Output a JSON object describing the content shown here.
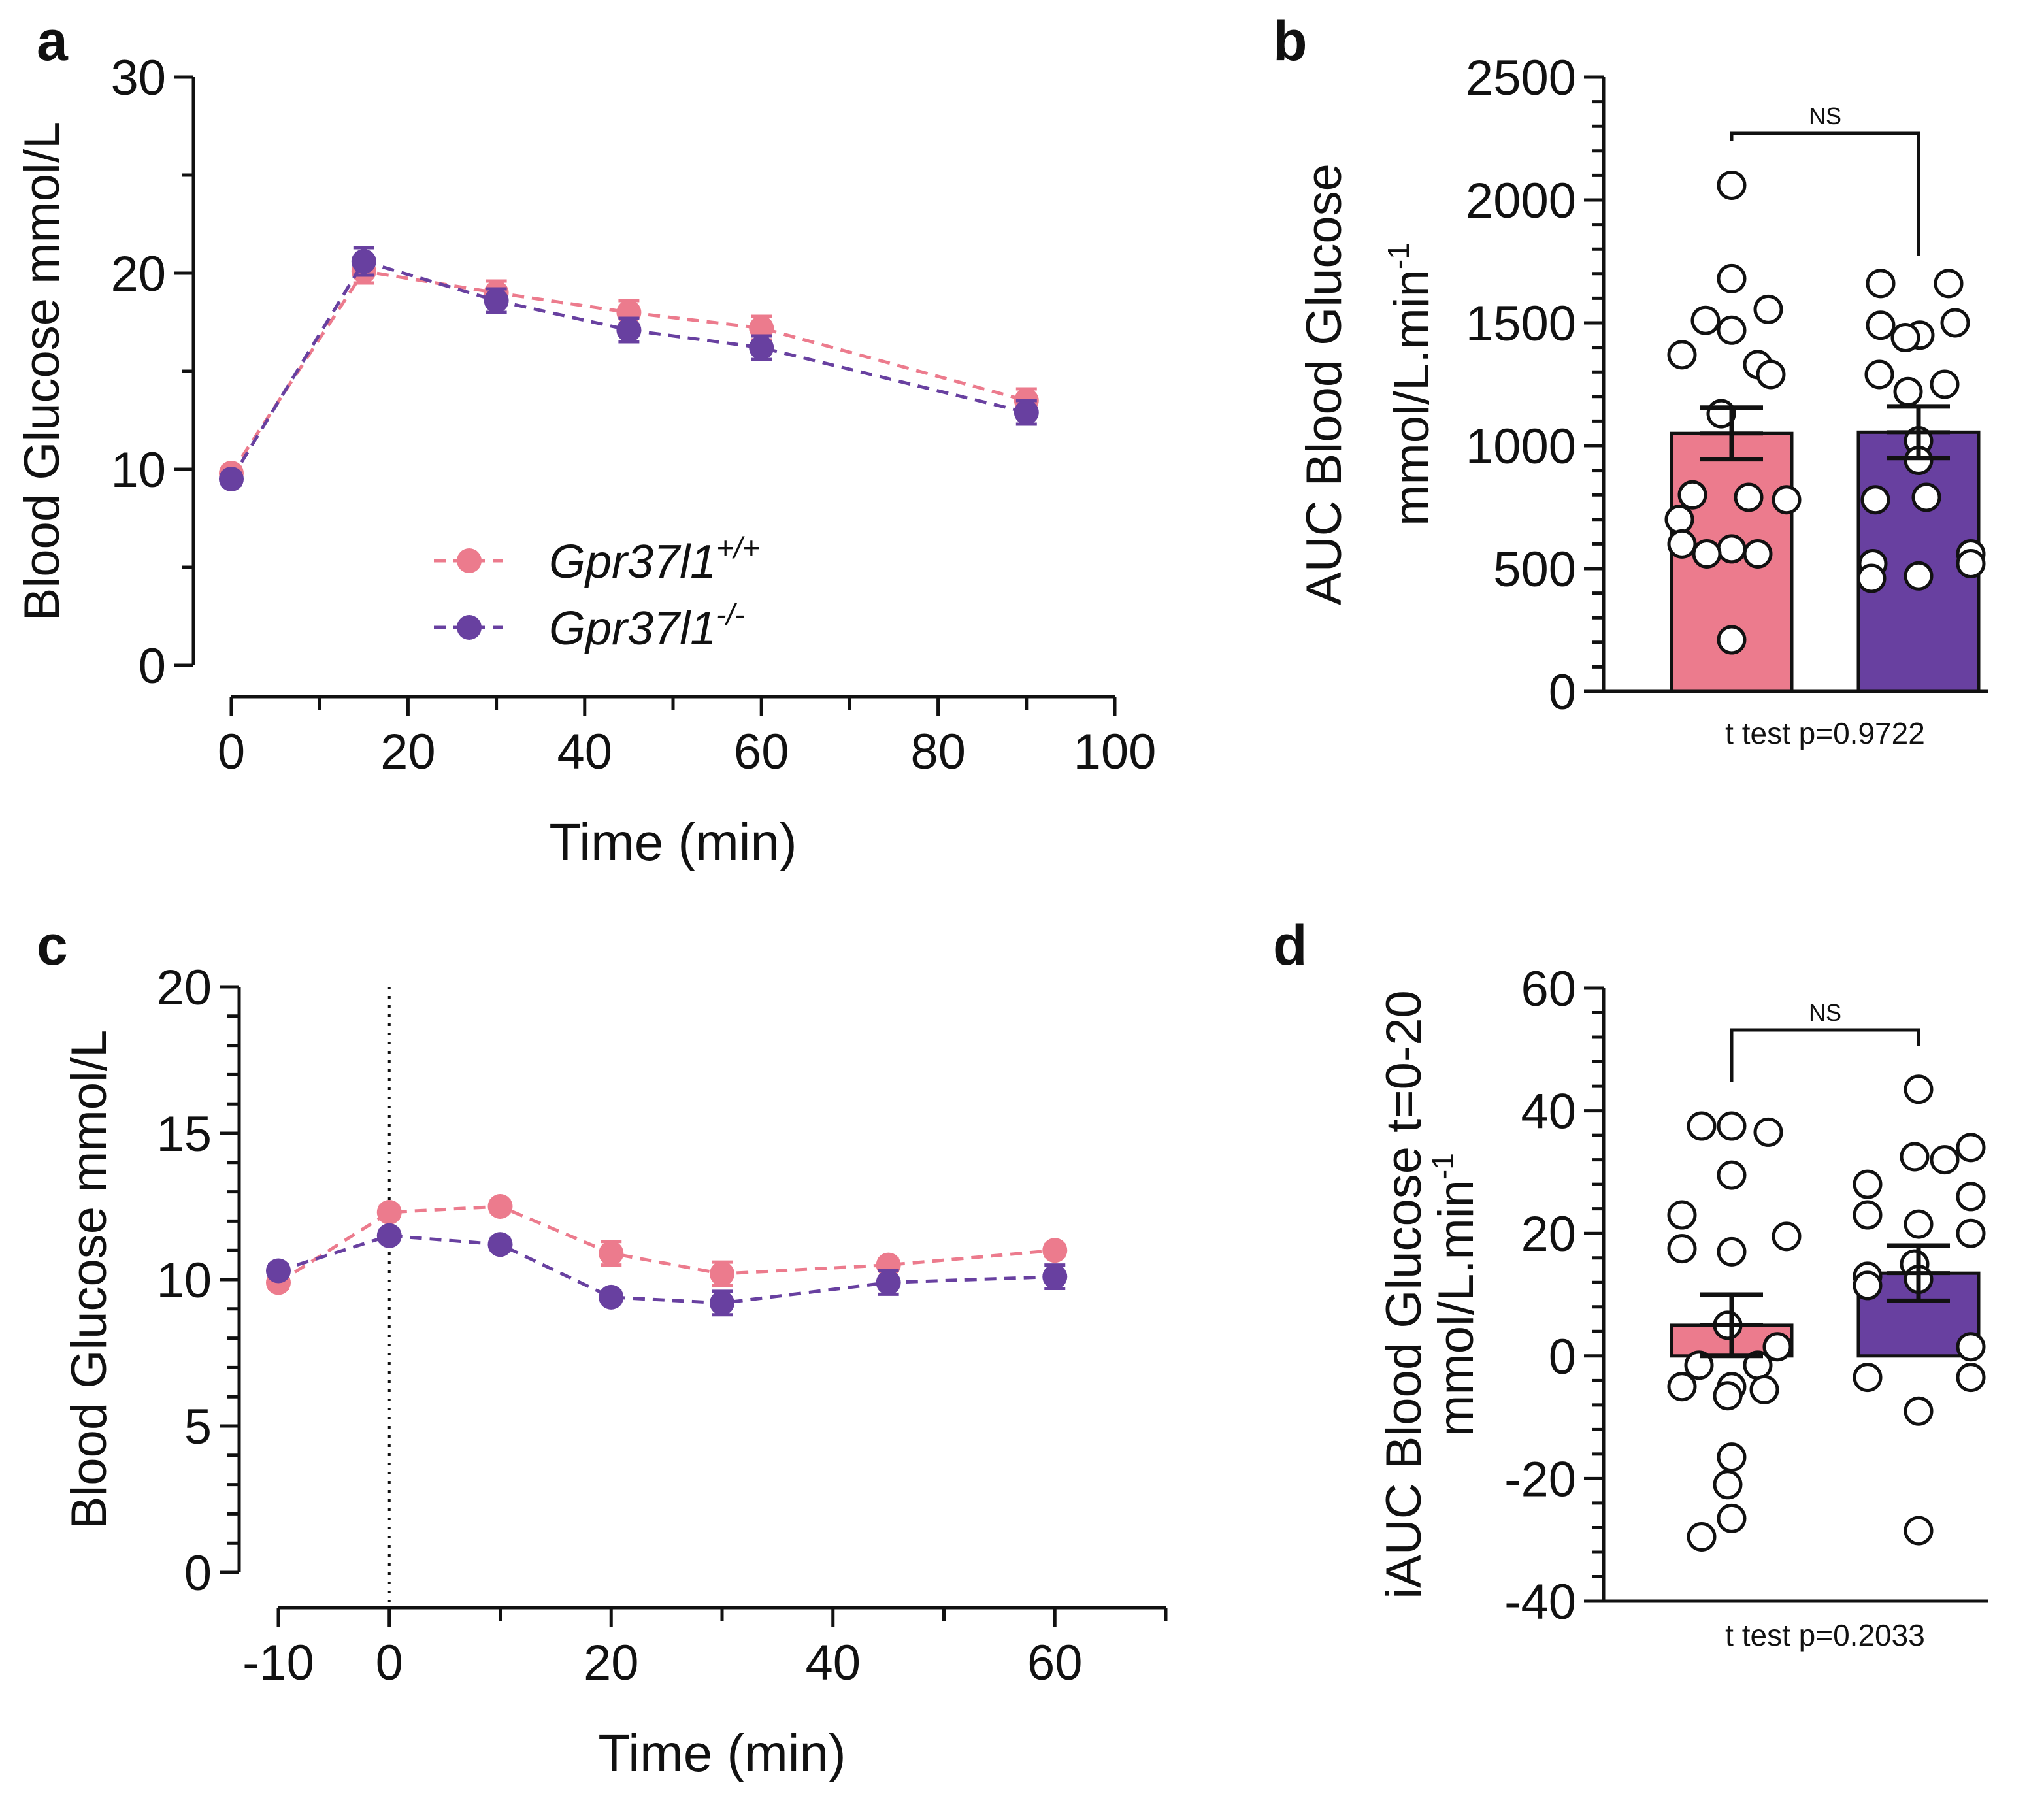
{
  "colors": {
    "wt": "#ec7b8d",
    "ko": "#6840a0",
    "axis": "#111111"
  },
  "legend": {
    "wt": {
      "name": "Gpr37l1",
      "sup": "+/+"
    },
    "ko": {
      "name": "Gpr37l1",
      "sup": "-/-"
    }
  },
  "chart_data": [
    {
      "panel": "a",
      "type": "line",
      "ylabel": "Blood Glucose mmol/L",
      "xlabel": "Time (min)",
      "xlim": [
        0,
        100
      ],
      "ylim": [
        0,
        30
      ],
      "xticks": [
        0,
        20,
        40,
        60,
        80,
        100
      ],
      "xminor": [
        10,
        30,
        50,
        70,
        90
      ],
      "yticks": [
        0,
        10,
        20,
        30
      ],
      "x": [
        0,
        15,
        30,
        45,
        60,
        90
      ],
      "series": [
        {
          "name": "Gpr37l1+/+",
          "key": "wt",
          "values": [
            9.8,
            20.1,
            19.0,
            18.0,
            17.2,
            13.5
          ],
          "err": [
            0.3,
            0.6,
            0.6,
            0.6,
            0.6,
            0.6
          ]
        },
        {
          "name": "Gpr37l1-/-",
          "key": "ko",
          "values": [
            9.5,
            20.6,
            18.6,
            17.1,
            16.2,
            12.9
          ],
          "err": [
            0.3,
            0.7,
            0.6,
            0.6,
            0.6,
            0.6
          ]
        }
      ]
    },
    {
      "panel": "b",
      "type": "bar",
      "ylabel_line1": "AUC Blood Glucose",
      "ylabel_line2": "mmol/L.min",
      "ylabel_sup": "-1",
      "ylim": [
        0,
        2500
      ],
      "yticks": [
        0,
        500,
        1000,
        1500,
        2000,
        2500
      ],
      "categories": [
        "Gpr37l1+/+",
        "Gpr37l1-/-"
      ],
      "values": [
        1050,
        1055
      ],
      "sem": [
        105,
        105
      ],
      "significance": "NS",
      "test": "t test p=0.9722",
      "points": [
        [
          2060,
          1680,
          1555,
          1510,
          1470,
          1370,
          1330,
          1290,
          1130,
          800,
          790,
          780,
          700,
          600,
          580,
          560,
          560,
          210
        ],
        [
          1660,
          1660,
          1500,
          1490,
          1450,
          1440,
          1290,
          1250,
          1220,
          1020,
          940,
          790,
          780,
          560,
          520,
          520,
          470,
          460
        ]
      ]
    },
    {
      "panel": "c",
      "type": "line",
      "ylabel": "Blood Glucose mmol/L",
      "xlabel": "Time (min)",
      "xlim": [
        -10,
        70
      ],
      "ylim": [
        0,
        20
      ],
      "xticks": [
        -10,
        0,
        20,
        40,
        60
      ],
      "xminor": [
        10,
        30,
        50,
        70
      ],
      "yticks": [
        0,
        5,
        10,
        15,
        20
      ],
      "vline": 0,
      "x": [
        -10,
        0,
        10,
        20,
        30,
        45,
        60
      ],
      "series": [
        {
          "name": "Gpr37l1+/+",
          "key": "wt",
          "values": [
            9.9,
            12.3,
            12.5,
            10.9,
            10.2,
            10.5,
            11.0
          ],
          "err": [
            0.2,
            0.2,
            0.2,
            0.4,
            0.4,
            0.2,
            0.2
          ]
        },
        {
          "name": "Gpr37l1-/-",
          "key": "ko",
          "values": [
            10.3,
            11.5,
            11.2,
            9.4,
            9.2,
            9.9,
            10.1
          ],
          "err": [
            0.2,
            0.2,
            0.2,
            0.2,
            0.4,
            0.4,
            0.4
          ]
        }
      ]
    },
    {
      "panel": "d",
      "type": "bar",
      "ylabel_line1": "iAUC Blood Glucose t=0-20",
      "ylabel_line2": "mmol/L.min",
      "ylabel_sup": "-1",
      "ylim": [
        -40,
        60
      ],
      "yticks": [
        -40,
        -20,
        0,
        20,
        40,
        60
      ],
      "categories": [
        "Gpr37l1+/+",
        "Gpr37l1-/-"
      ],
      "values": [
        5,
        13.5
      ],
      "sem": [
        5,
        4.5
      ],
      "significance": "NS",
      "test": "t test p=0.2033",
      "points": [
        [
          37.5,
          37.5,
          36.5,
          29.5,
          23,
          19.5,
          17.5,
          17,
          5,
          1.5,
          -1.5,
          -1.5,
          -5,
          -5,
          -5.5,
          -6.5,
          -16.5,
          -21,
          -26.5,
          -29.5
        ],
        [
          43.5,
          34,
          32.5,
          32,
          28,
          26,
          23,
          21.5,
          20,
          15,
          13,
          12.5,
          11.5,
          1.5,
          -3.5,
          -3.5,
          -9,
          -28.5
        ]
      ]
    }
  ]
}
